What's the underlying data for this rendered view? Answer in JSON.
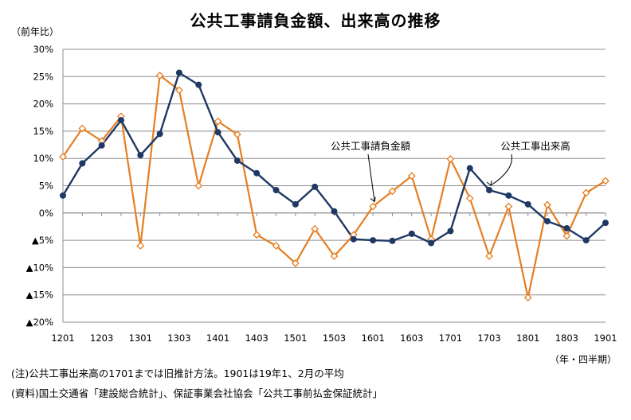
{
  "chart_data": {
    "type": "line",
    "title": "公共工事請負金額、出来高の推移",
    "ylabel": "（前年比）",
    "xlabel": "（年・四半期）",
    "ylim": [
      -20,
      30
    ],
    "y_ticks": [
      {
        "value": 30,
        "label": "30%"
      },
      {
        "value": 25,
        "label": "25%"
      },
      {
        "value": 20,
        "label": "20%"
      },
      {
        "value": 15,
        "label": "15%"
      },
      {
        "value": 10,
        "label": "10%"
      },
      {
        "value": 5,
        "label": "5%"
      },
      {
        "value": 0,
        "label": "0%"
      },
      {
        "value": -5,
        "label": "▲5%"
      },
      {
        "value": -10,
        "label": "▲10%"
      },
      {
        "value": -15,
        "label": "▲15%"
      },
      {
        "value": -20,
        "label": "▲20%"
      }
    ],
    "x": [
      "1201",
      "1202",
      "1203",
      "1204",
      "1301",
      "1302",
      "1303",
      "1304",
      "1401",
      "1402",
      "1403",
      "1404",
      "1501",
      "1502",
      "1503",
      "1504",
      "1601",
      "1602",
      "1603",
      "1604",
      "1701",
      "1702",
      "1703",
      "1704",
      "1801",
      "1802",
      "1803",
      "1804",
      "1901"
    ],
    "x_tick_labels": [
      "1201",
      "1203",
      "1301",
      "1303",
      "1401",
      "1403",
      "1501",
      "1503",
      "1601",
      "1603",
      "1701",
      "1703",
      "1801",
      "1803",
      "1901"
    ],
    "grid": "horizontal",
    "series": [
      {
        "name": "公共工事請負金額",
        "color": "#E67E22",
        "marker": "diamond-open",
        "values": [
          10.3,
          15.5,
          13.2,
          17.7,
          -6.0,
          25.2,
          22.5,
          5.0,
          16.8,
          14.4,
          -4.0,
          -6.0,
          -9.2,
          -2.9,
          -7.9,
          -4.0,
          1.2,
          4.0,
          6.8,
          -4.8,
          9.9,
          2.7,
          -7.9,
          1.2,
          -15.5,
          1.5,
          -4.2,
          3.7,
          5.9
        ]
      },
      {
        "name": "公共工事出来高",
        "color": "#1F3864",
        "marker": "circle-filled",
        "values": [
          3.2,
          9.1,
          12.4,
          17.0,
          10.6,
          14.5,
          25.7,
          23.5,
          14.8,
          9.6,
          7.3,
          4.2,
          1.6,
          4.8,
          0.3,
          -4.8,
          -5.0,
          -5.1,
          -3.8,
          -5.5,
          -3.3,
          8.2,
          4.2,
          3.2,
          1.6,
          -1.5,
          -2.8,
          -5.0,
          -1.8
        ]
      }
    ]
  },
  "notes": {
    "line1": "(注)公共工事出来高の1701までは旧推計方法。1901は19年1、2月の平均",
    "line2": "(資料)国土交通省「建設総合統計」、保証事業会社協会「公共工事前払金保証統計」"
  }
}
